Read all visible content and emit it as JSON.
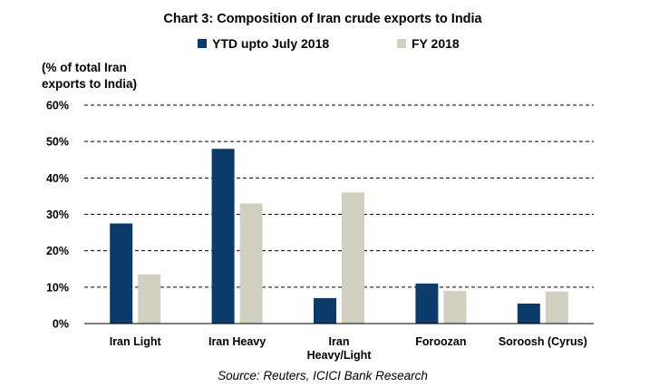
{
  "chart_data": {
    "type": "bar",
    "title": "Chart 3: Composition of Iran crude exports to India",
    "ylabel_lines": [
      "(% of total Iran",
      "exports to India)"
    ],
    "xlabel": "",
    "categories": [
      [
        "Iran Light"
      ],
      [
        "Iran Heavy"
      ],
      [
        "Iran",
        "Heavy/Light"
      ],
      [
        "Foroozan"
      ],
      [
        "Soroosh (Cyrus)"
      ]
    ],
    "series": [
      {
        "name": "YTD upto July 2018",
        "color": "#0b3a6b",
        "values": [
          27.5,
          48,
          7,
          11,
          5.5
        ]
      },
      {
        "name": "FY 2018",
        "color": "#d1cfbf",
        "values": [
          13.5,
          33,
          36,
          9,
          8.8
        ]
      }
    ],
    "ylim": [
      0,
      60
    ],
    "yticks": [
      0,
      10,
      20,
      30,
      40,
      50,
      60
    ],
    "ytick_suffix": "%",
    "grid": true,
    "legend_position": "top",
    "source": "Source: Reuters, ICICI Bank Research"
  }
}
